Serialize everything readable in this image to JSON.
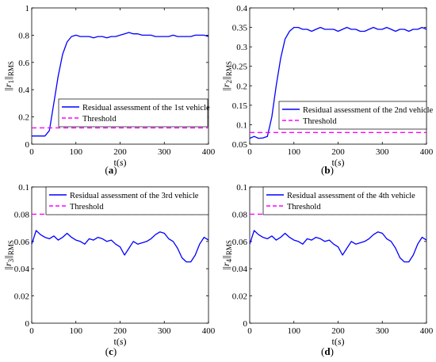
{
  "chart_data": [
    {
      "type": "line",
      "caption": "(a)",
      "xlabel": "t(s)",
      "ylabel": "||r1||RMS",
      "xlim": [
        0,
        400
      ],
      "ylim": [
        0,
        1
      ],
      "xticks": [
        "0",
        "100",
        "200",
        "300",
        "400"
      ],
      "yticks": [
        "0",
        "0.2",
        "0.4",
        "0.6",
        "0.8",
        "1"
      ],
      "legend_position": "center-right",
      "series": [
        {
          "name": "Residual assessment of the 1st vehicle",
          "style": "solid",
          "color": "#0000ff",
          "x": [
            0,
            10,
            20,
            30,
            40,
            50,
            60,
            70,
            80,
            90,
            100,
            110,
            120,
            130,
            140,
            150,
            160,
            170,
            180,
            190,
            200,
            210,
            220,
            230,
            240,
            250,
            260,
            270,
            280,
            290,
            300,
            310,
            320,
            330,
            340,
            350,
            360,
            370,
            380,
            390,
            400
          ],
          "y": [
            0.06,
            0.06,
            0.06,
            0.06,
            0.1,
            0.3,
            0.5,
            0.66,
            0.75,
            0.79,
            0.8,
            0.79,
            0.79,
            0.79,
            0.78,
            0.79,
            0.79,
            0.78,
            0.79,
            0.79,
            0.8,
            0.81,
            0.82,
            0.81,
            0.81,
            0.8,
            0.8,
            0.8,
            0.79,
            0.79,
            0.79,
            0.79,
            0.8,
            0.79,
            0.79,
            0.79,
            0.79,
            0.8,
            0.8,
            0.8,
            0.79
          ]
        },
        {
          "name": "Threshold",
          "style": "dashed",
          "color": "#ff00ff",
          "x": [
            0,
            400
          ],
          "y": [
            0.12,
            0.12
          ]
        }
      ]
    },
    {
      "type": "line",
      "caption": "(b)",
      "xlabel": "t(s)",
      "ylabel": "||r2||RMS",
      "xlim": [
        0,
        400
      ],
      "ylim": [
        0.05,
        0.4
      ],
      "xticks": [
        "0",
        "100",
        "200",
        "300",
        "400"
      ],
      "yticks": [
        "0.05",
        "0.1",
        "0.15",
        "0.2",
        "0.25",
        "0.3",
        "0.35",
        "0.4"
      ],
      "legend_position": "center-right",
      "series": [
        {
          "name": "Residual assessment of the 2nd vehicle",
          "style": "solid",
          "color": "#0000ff",
          "x": [
            0,
            10,
            20,
            30,
            40,
            50,
            60,
            70,
            80,
            90,
            100,
            110,
            120,
            130,
            140,
            150,
            160,
            170,
            180,
            190,
            200,
            210,
            220,
            230,
            240,
            250,
            260,
            270,
            280,
            290,
            300,
            310,
            320,
            330,
            340,
            350,
            360,
            370,
            380,
            390,
            400
          ],
          "y": [
            0.065,
            0.07,
            0.065,
            0.066,
            0.07,
            0.12,
            0.2,
            0.27,
            0.32,
            0.34,
            0.35,
            0.35,
            0.345,
            0.345,
            0.34,
            0.345,
            0.35,
            0.345,
            0.345,
            0.345,
            0.34,
            0.345,
            0.35,
            0.345,
            0.345,
            0.34,
            0.34,
            0.345,
            0.35,
            0.345,
            0.345,
            0.35,
            0.345,
            0.34,
            0.345,
            0.345,
            0.34,
            0.345,
            0.345,
            0.35,
            0.345
          ]
        },
        {
          "name": "Threshold",
          "style": "dashed",
          "color": "#ff00ff",
          "x": [
            0,
            400
          ],
          "y": [
            0.08,
            0.08
          ]
        }
      ]
    },
    {
      "type": "line",
      "caption": "(c)",
      "xlabel": "t(s)",
      "ylabel": "||r3||RMS",
      "xlim": [
        0,
        400
      ],
      "ylim": [
        0,
        0.1
      ],
      "xticks": [
        "0",
        "100",
        "200",
        "300",
        "400"
      ],
      "yticks": [
        "0",
        "0.02",
        "0.04",
        "0.06",
        "0.08",
        "0.1"
      ],
      "legend_position": "top-right",
      "series": [
        {
          "name": "Residual assessment of the 3rd vehicle",
          "style": "solid",
          "color": "#0000ff",
          "x": [
            0,
            10,
            20,
            30,
            40,
            50,
            60,
            70,
            80,
            90,
            100,
            110,
            120,
            130,
            140,
            150,
            160,
            170,
            180,
            190,
            200,
            210,
            220,
            230,
            240,
            250,
            260,
            270,
            280,
            290,
            300,
            310,
            320,
            330,
            340,
            350,
            360,
            370,
            380,
            390,
            400
          ],
          "y": [
            0.058,
            0.068,
            0.065,
            0.063,
            0.062,
            0.064,
            0.061,
            0.063,
            0.066,
            0.063,
            0.061,
            0.06,
            0.058,
            0.062,
            0.061,
            0.063,
            0.062,
            0.06,
            0.061,
            0.058,
            0.056,
            0.05,
            0.055,
            0.06,
            0.058,
            0.059,
            0.06,
            0.062,
            0.065,
            0.067,
            0.066,
            0.062,
            0.06,
            0.055,
            0.048,
            0.045,
            0.045,
            0.05,
            0.058,
            0.063,
            0.061
          ]
        },
        {
          "name": "Threshold",
          "style": "dashed",
          "color": "#ff00ff",
          "x": [
            0,
            400
          ],
          "y": [
            0.08,
            0.08
          ]
        }
      ]
    },
    {
      "type": "line",
      "caption": "(d)",
      "xlabel": "t(s)",
      "ylabel": "||r4||RMS",
      "xlim": [
        0,
        400
      ],
      "ylim": [
        0,
        0.1
      ],
      "xticks": [
        "0",
        "100",
        "200",
        "300",
        "400"
      ],
      "yticks": [
        "0",
        "0.02",
        "0.04",
        "0.06",
        "0.08",
        "0.1"
      ],
      "legend_position": "top-right",
      "series": [
        {
          "name": "Residual assessment of the 4th vehicle",
          "style": "solid",
          "color": "#0000ff",
          "x": [
            0,
            10,
            20,
            30,
            40,
            50,
            60,
            70,
            80,
            90,
            100,
            110,
            120,
            130,
            140,
            150,
            160,
            170,
            180,
            190,
            200,
            210,
            220,
            230,
            240,
            250,
            260,
            270,
            280,
            290,
            300,
            310,
            320,
            330,
            340,
            350,
            360,
            370,
            380,
            390,
            400
          ],
          "y": [
            0.058,
            0.068,
            0.065,
            0.063,
            0.062,
            0.064,
            0.061,
            0.063,
            0.066,
            0.063,
            0.061,
            0.06,
            0.058,
            0.062,
            0.061,
            0.063,
            0.062,
            0.06,
            0.061,
            0.058,
            0.056,
            0.05,
            0.055,
            0.06,
            0.058,
            0.059,
            0.06,
            0.062,
            0.065,
            0.067,
            0.066,
            0.062,
            0.06,
            0.055,
            0.048,
            0.045,
            0.045,
            0.05,
            0.058,
            0.063,
            0.061
          ]
        },
        {
          "name": "Threshold",
          "style": "dashed",
          "color": "#ff00ff",
          "x": [
            0,
            400
          ],
          "y": [
            0.08,
            0.08
          ]
        }
      ]
    }
  ]
}
